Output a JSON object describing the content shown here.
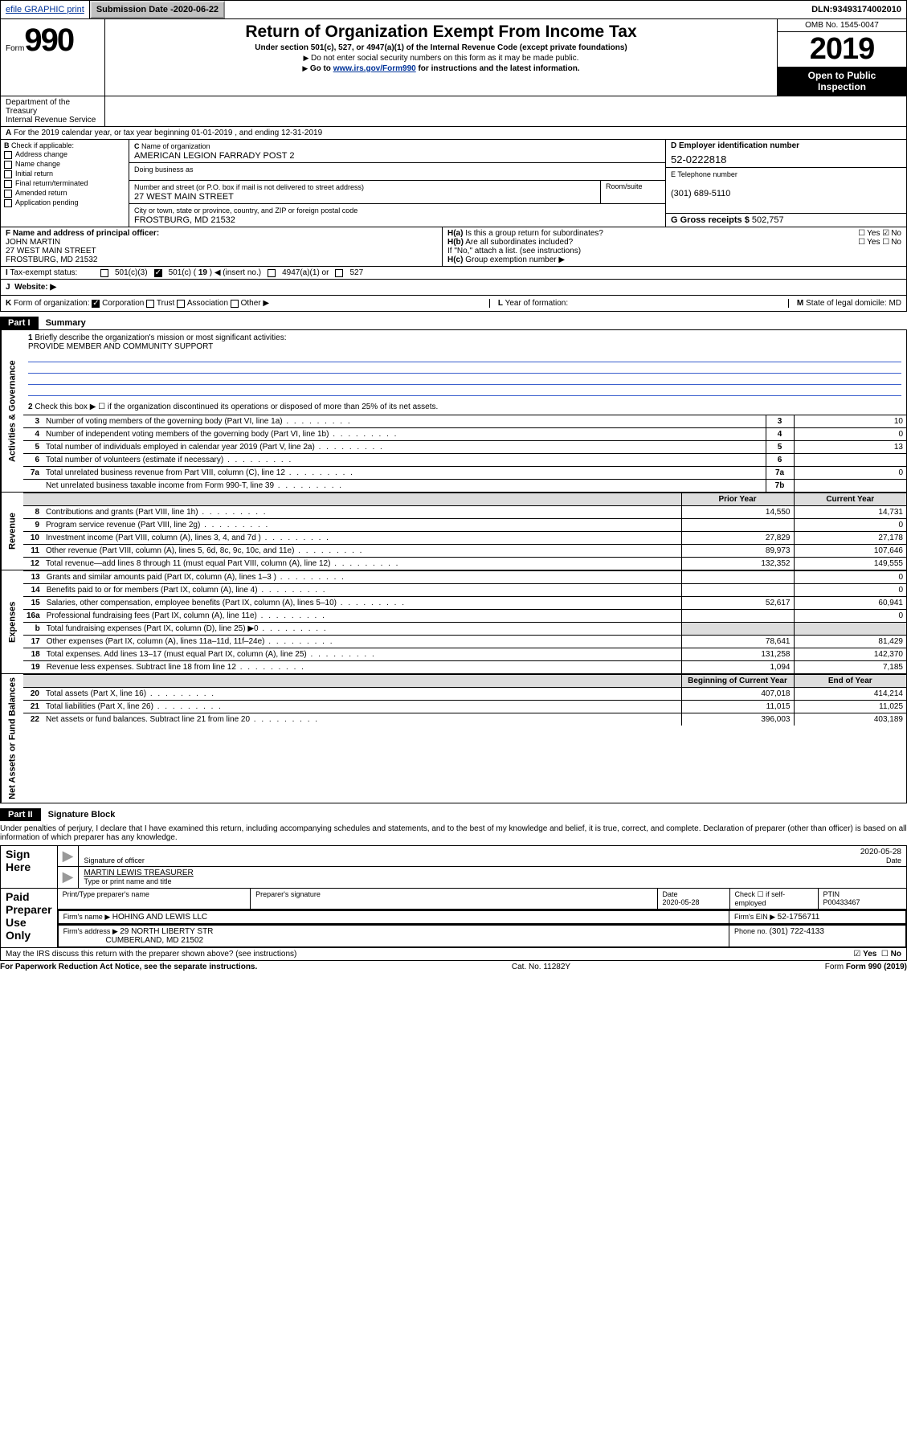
{
  "topbar": {
    "efile": "efile GRAPHIC print",
    "subdate_label": "Submission Date - ",
    "subdate": "2020-06-22",
    "dln_label": "DLN: ",
    "dln": "93493174002010"
  },
  "header": {
    "form_word": "Form",
    "form_num": "990",
    "title": "Return of Organization Exempt From Income Tax",
    "sub1": "Under section 501(c), 527, or 4947(a)(1) of the Internal Revenue Code (except private foundations)",
    "sub2": "Do not enter social security numbers on this form as it may be made public.",
    "sub3_pre": "Go to ",
    "sub3_link": "www.irs.gov/Form990",
    "sub3_post": " for instructions and the latest information.",
    "omb": "OMB No. 1545-0047",
    "year": "2019",
    "open1": "Open to Public",
    "open2": "Inspection",
    "dept1": "Department of the Treasury",
    "dept2": "Internal Revenue Service"
  },
  "a_line": "For the 2019 calendar year, or tax year beginning 01-01-2019    , and ending 12-31-2019",
  "checkB": {
    "label": "Check if applicable:",
    "items": [
      "Address change",
      "Name change",
      "Initial return",
      "Final return/terminated",
      "Amended return",
      "Application pending"
    ]
  },
  "blockC": {
    "org_label": "Name of organization",
    "org": "AMERICAN LEGION FARRADY POST 2",
    "dba_label": "Doing business as",
    "street_label": "Number and street (or P.O. box if mail is not delivered to street address)",
    "street": "27 WEST MAIN STREET",
    "room_label": "Room/suite",
    "city_label": "City or town, state or province, country, and ZIP or foreign postal code",
    "city": "FROSTBURG, MD  21532"
  },
  "blockD": {
    "ein_label": "D Employer identification number",
    "ein": "52-0222818",
    "tel_label": "E Telephone number",
    "tel": "(301) 689-5110",
    "gross_label": "G Gross receipts $ ",
    "gross": "502,757"
  },
  "blockF": {
    "label": "F  Name and address of principal officer:",
    "name": "JOHN MARTIN",
    "addr1": "27 WEST MAIN STREET",
    "addr2": "FROSTBURG, MD  21532"
  },
  "blockH": {
    "ha": "Is this a group return for subordinates?",
    "hb": "Are all subordinates included?",
    "hnote": "If \"No,\" attach a list. (see instructions)",
    "hc": "Group exemption number ▶"
  },
  "tax_status": {
    "lead": "Tax-exempt status:",
    "o1": "501(c)(3)",
    "o2_pre": "501(c) ( ",
    "o2_num": "19",
    "o2_post": " ) ◀ (insert no.)",
    "o3": "4947(a)(1) or",
    "o4": "527"
  },
  "j": {
    "label": "Website: ▶"
  },
  "k": {
    "form_label": "Form of organization:",
    "opts": [
      "Corporation",
      "Trust",
      "Association",
      "Other ▶"
    ],
    "year_label": "Year of formation:",
    "state_label": "State of legal domicile:",
    "state": "MD"
  },
  "part1": {
    "tab": "Part I",
    "title": "Summary",
    "side_gov": "Activities & Governance",
    "side_rev": "Revenue",
    "side_exp": "Expenses",
    "side_net": "Net Assets or Fund Balances",
    "q1": "Briefly describe the organization's mission or most significant activities:",
    "mission": "PROVIDE MEMBER AND COMMUNITY SUPPORT",
    "q2": "Check this box ▶ ☐  if the organization discontinued its operations or disposed of more than 25% of its net assets.",
    "rows_gov": [
      {
        "n": "3",
        "d": "Number of voting members of the governing body (Part VI, line 1a)",
        "c": "3",
        "v": "10"
      },
      {
        "n": "4",
        "d": "Number of independent voting members of the governing body (Part VI, line 1b)",
        "c": "4",
        "v": "0"
      },
      {
        "n": "5",
        "d": "Total number of individuals employed in calendar year 2019 (Part V, line 2a)",
        "c": "5",
        "v": "13"
      },
      {
        "n": "6",
        "d": "Total number of volunteers (estimate if necessary)",
        "c": "6",
        "v": ""
      },
      {
        "n": "7a",
        "d": "Total unrelated business revenue from Part VIII, column (C), line 12",
        "c": "7a",
        "v": "0"
      },
      {
        "n": "",
        "d": "Net unrelated business taxable income from Form 990-T, line 39",
        "c": "7b",
        "v": ""
      }
    ],
    "h_prior": "Prior Year",
    "h_curr": "Current Year",
    "rows_rev": [
      {
        "n": "8",
        "d": "Contributions and grants (Part VIII, line 1h)",
        "p": "14,550",
        "c": "14,731"
      },
      {
        "n": "9",
        "d": "Program service revenue (Part VIII, line 2g)",
        "p": "",
        "c": "0"
      },
      {
        "n": "10",
        "d": "Investment income (Part VIII, column (A), lines 3, 4, and 7d )",
        "p": "27,829",
        "c": "27,178"
      },
      {
        "n": "11",
        "d": "Other revenue (Part VIII, column (A), lines 5, 6d, 8c, 9c, 10c, and 11e)",
        "p": "89,973",
        "c": "107,646"
      },
      {
        "n": "12",
        "d": "Total revenue—add lines 8 through 11 (must equal Part VIII, column (A), line 12)",
        "p": "132,352",
        "c": "149,555"
      }
    ],
    "rows_exp": [
      {
        "n": "13",
        "d": "Grants and similar amounts paid (Part IX, column (A), lines 1–3 )",
        "p": "",
        "c": "0"
      },
      {
        "n": "14",
        "d": "Benefits paid to or for members (Part IX, column (A), line 4)",
        "p": "",
        "c": "0"
      },
      {
        "n": "15",
        "d": "Salaries, other compensation, employee benefits (Part IX, column (A), lines 5–10)",
        "p": "52,617",
        "c": "60,941"
      },
      {
        "n": "16a",
        "d": "Professional fundraising fees (Part IX, column (A), line 11e)",
        "p": "",
        "c": "0"
      },
      {
        "n": "b",
        "d": "Total fundraising expenses (Part IX, column (D), line 25) ▶0",
        "p": "shade",
        "c": "shade"
      },
      {
        "n": "17",
        "d": "Other expenses (Part IX, column (A), lines 11a–11d, 11f–24e)",
        "p": "78,641",
        "c": "81,429"
      },
      {
        "n": "18",
        "d": "Total expenses. Add lines 13–17 (must equal Part IX, column (A), line 25)",
        "p": "131,258",
        "c": "142,370"
      },
      {
        "n": "19",
        "d": "Revenue less expenses. Subtract line 18 from line 12",
        "p": "1,094",
        "c": "7,185"
      }
    ],
    "h_beg": "Beginning of Current Year",
    "h_end": "End of Year",
    "rows_net": [
      {
        "n": "20",
        "d": "Total assets (Part X, line 16)",
        "p": "407,018",
        "c": "414,214"
      },
      {
        "n": "21",
        "d": "Total liabilities (Part X, line 26)",
        "p": "11,015",
        "c": "11,025"
      },
      {
        "n": "22",
        "d": "Net assets or fund balances. Subtract line 21 from line 20",
        "p": "396,003",
        "c": "403,189"
      }
    ]
  },
  "part2": {
    "tab": "Part II",
    "title": "Signature Block",
    "penalty": "Under penalties of perjury, I declare that I have examined this return, including accompanying schedules and statements, and to the best of my knowledge and belief, it is true, correct, and complete. Declaration of preparer (other than officer) is based on all information of which preparer has any knowledge.",
    "sign_here": "Sign Here",
    "sig_officer": "Signature of officer",
    "sig_date": "2020-05-28",
    "date_label": "Date",
    "officer_name": "MARTIN LEWIS TREASURER",
    "officer_sub": "Type or print name and title",
    "paid": "Paid Preparer Use Only",
    "prep_name_label": "Print/Type preparer's name",
    "prep_sig_label": "Preparer's signature",
    "prep_date_label": "Date",
    "prep_date": "2020-05-28",
    "self_emp": "Check ☐ if self-employed",
    "ptin_label": "PTIN",
    "ptin": "P00433467",
    "firm_name_label": "Firm's name    ▶ ",
    "firm_name": "HOHING AND LEWIS LLC",
    "firm_ein_label": "Firm's EIN ▶ ",
    "firm_ein": "52-1756711",
    "firm_addr_label": "Firm's address ▶ ",
    "firm_addr1": "29 NORTH LIBERTY STR",
    "firm_addr2": "CUMBERLAND, MD  21502",
    "phone_label": "Phone no. ",
    "phone": "(301) 722-4133"
  },
  "irs_discuss": "May the IRS discuss this return with the preparer shown above? (see instructions)",
  "footer": {
    "left": "For Paperwork Reduction Act Notice, see the separate instructions.",
    "mid": "Cat. No. 11282Y",
    "right": "Form 990 (2019)"
  }
}
